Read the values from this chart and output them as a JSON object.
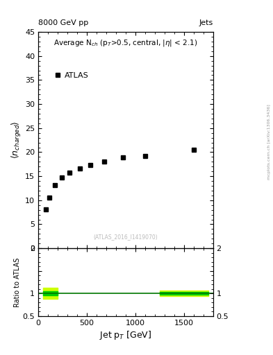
{
  "title_top_left": "8000 GeV pp",
  "title_top_right": "Jets",
  "plot_title": "Average N$_{ch}$ (p$_{T}$>0.5, central, |$\\eta$| < 2.1)",
  "watermark": "(ATLAS_2016_I1419070)",
  "arxiv_text": "mcplots.cern.ch [arXiv:1306.3436]",
  "ylabel_main": "$\\langle n_{charged}\\rangle$",
  "ylabel_ratio": "Ratio to ATLAS",
  "xlabel": "Jet p$_{T}$ [GeV]",
  "data_x_real": [
    75,
    115,
    175,
    245,
    325,
    430,
    540,
    680,
    875,
    1100,
    1600
  ],
  "data_y_real": [
    8.1,
    10.5,
    13.1,
    14.7,
    15.8,
    16.6,
    17.3,
    18.1,
    18.9,
    19.2,
    20.5
  ],
  "ylim_main": [
    0,
    45
  ],
  "ylim_ratio": [
    0.5,
    2.0
  ],
  "yticks_main": [
    0,
    5,
    10,
    15,
    20,
    25,
    30,
    35,
    40,
    45
  ],
  "yticks_ratio_left": [
    0.5,
    1.0,
    1.5,
    2.0
  ],
  "yticks_ratio_right": [
    0.5,
    1.0,
    1.5,
    2.0
  ],
  "xlim": [
    0,
    1800
  ],
  "marker_color": "black",
  "marker_size": 5,
  "legend_label": "ATLAS",
  "ratio_green_color": "#00cc00",
  "ratio_yellow_color": "#ccff00",
  "ratio_line_color": "#007700"
}
